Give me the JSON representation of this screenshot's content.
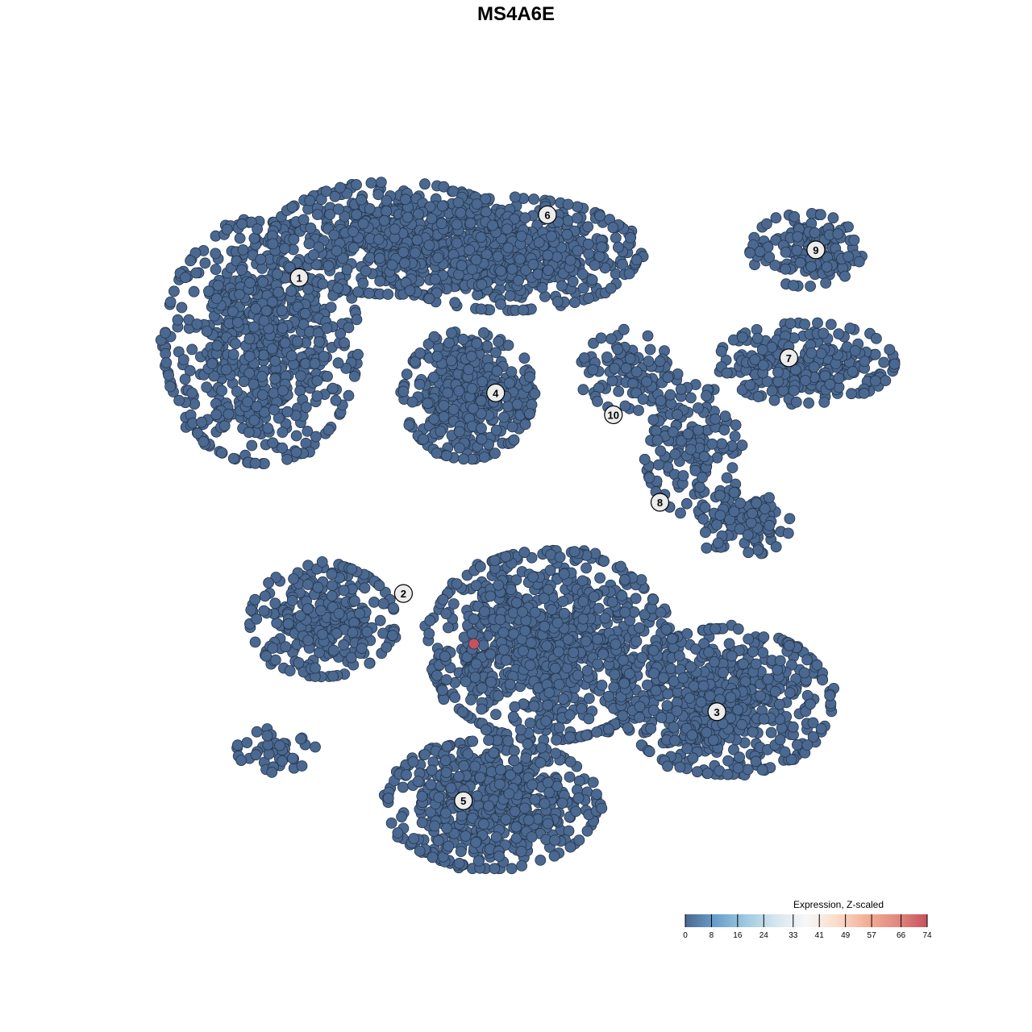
{
  "chart_data": {
    "type": "scatter",
    "title": "MS4A6E",
    "xlabel": "",
    "ylabel": "",
    "xlim": [
      -50,
      50
    ],
    "ylim": [
      -50,
      50
    ],
    "grid": false,
    "point_color_default": "#4a6890",
    "point_stroke": "#26364c",
    "cluster_regions": [
      {
        "cluster": "1",
        "cx": -36.6,
        "cy": 23.5,
        "sx": 12.9,
        "sy": 16.6,
        "n": 700
      },
      {
        "cluster": "1",
        "cx": -19.1,
        "cy": 37.8,
        "sx": 16.1,
        "sy": 7.7,
        "n": 500
      },
      {
        "cluster": "6",
        "cx": -3.7,
        "cy": 35.6,
        "sx": 17.2,
        "sy": 7.7,
        "n": 600
      },
      {
        "cluster": "4",
        "cx": -9.1,
        "cy": 16.3,
        "sx": 8.6,
        "sy": 8.8,
        "n": 400
      },
      {
        "cluster": "9",
        "cx": 36,
        "cy": 36.2,
        "sx": 7.5,
        "sy": 5,
        "n": 150
      },
      {
        "cluster": "7",
        "cx": 36,
        "cy": 20.7,
        "sx": 11.8,
        "sy": 5.5,
        "n": 250
      },
      {
        "cluster": "10",
        "cx": 12.4,
        "cy": 19.6,
        "sx": 6.5,
        "sy": 5.5,
        "n": 100
      },
      {
        "cluster": "8",
        "cx": 21,
        "cy": 8.6,
        "sx": 6.5,
        "sy": 8.8,
        "n": 150
      },
      {
        "cluster": "8",
        "cx": 27.4,
        "cy": -1.4,
        "sx": 6.5,
        "sy": 4.4,
        "n": 120
      },
      {
        "cluster": "2",
        "cx": -28.5,
        "cy": -14.6,
        "sx": 9.7,
        "sy": 7.7,
        "n": 300
      },
      {
        "cluster": "2",
        "cx": 1.6,
        "cy": -18,
        "sx": 16,
        "sy": 13,
        "n": 900
      },
      {
        "cluster": "3",
        "cx": 25.3,
        "cy": -25.7,
        "sx": 14,
        "sy": 10,
        "n": 600
      },
      {
        "cluster": "5",
        "cx": -5.9,
        "cy": -39.8,
        "sx": 14,
        "sy": 8.8,
        "n": 600
      },
      {
        "cluster": "2",
        "cx": -34.5,
        "cy": -32.3,
        "sx": 5.4,
        "sy": 3.3,
        "n": 40
      }
    ],
    "highlighted_points": [
      {
        "x": -8.3,
        "y": -17.8,
        "value": 74
      }
    ],
    "cluster_labels": [
      {
        "label": "1",
        "x": -31.6,
        "y": 32.4
      },
      {
        "label": "6",
        "x": 1.5,
        "y": 41.0
      },
      {
        "label": "4",
        "x": -5.4,
        "y": 16.6
      },
      {
        "label": "9",
        "x": 37.3,
        "y": 36.2
      },
      {
        "label": "7",
        "x": 33.7,
        "y": 21.4
      },
      {
        "label": "10",
        "x": 10.3,
        "y": 13.6
      },
      {
        "label": "8",
        "x": 16.5,
        "y": 1.6
      },
      {
        "label": "2",
        "x": -17.7,
        "y": -10.9
      },
      {
        "label": "3",
        "x": 24.1,
        "y": -27.1
      },
      {
        "label": "5",
        "x": -9.7,
        "y": -39.3
      }
    ],
    "colorbar": {
      "title": "Expression, Z-scaled",
      "ticks": [
        "0",
        "8",
        "16",
        "24",
        "33",
        "41",
        "49",
        "57",
        "66",
        "74"
      ],
      "range": [
        0,
        74
      ],
      "colors": [
        "#4a6890",
        "#6a9fcb",
        "#9ecae1",
        "#d6e6f0",
        "#f7f7f7",
        "#fbdccb",
        "#f2b097",
        "#e08a7e",
        "#c9505f"
      ]
    }
  }
}
